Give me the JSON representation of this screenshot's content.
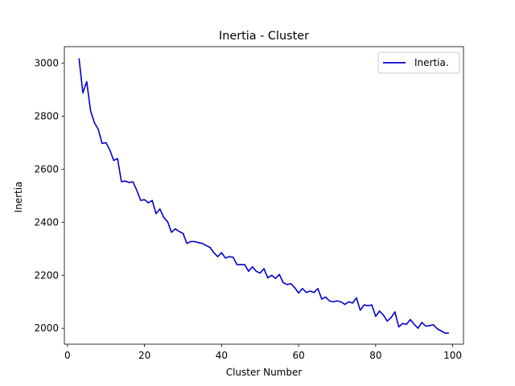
{
  "chart_data": {
    "type": "line",
    "title": "Inertia - Cluster",
    "xlabel": "Cluster Number",
    "ylabel": "Inertia",
    "xlim": [
      -0.8,
      102.8
    ],
    "ylim": [
      1940,
      3062
    ],
    "xticks": [
      0,
      20,
      40,
      60,
      80,
      100
    ],
    "yticks": [
      2000,
      2200,
      2400,
      2600,
      2800,
      3000
    ],
    "grid": false,
    "legend": {
      "position": "top-right"
    },
    "series": [
      {
        "name": "Inertia.",
        "color": "#0000cc",
        "x": [
          3,
          4,
          5,
          6,
          7,
          8,
          9,
          10,
          11,
          12,
          13,
          14,
          15,
          16,
          17,
          18,
          19,
          20,
          21,
          22,
          23,
          24,
          25,
          26,
          27,
          28,
          29,
          30,
          31,
          32,
          33,
          34,
          35,
          36,
          37,
          38,
          39,
          40,
          41,
          42,
          43,
          44,
          45,
          46,
          47,
          48,
          49,
          50,
          51,
          52,
          53,
          54,
          55,
          56,
          57,
          58,
          59,
          60,
          61,
          62,
          63,
          64,
          65,
          66,
          67,
          68,
          69,
          70,
          71,
          72,
          73,
          74,
          75,
          76,
          77,
          78,
          79,
          80,
          81,
          82,
          83,
          84,
          85,
          86,
          87,
          88,
          89,
          90,
          91,
          92,
          93,
          94,
          95,
          96,
          97,
          98,
          99
        ],
        "values": [
          3018,
          2888,
          2930,
          2820,
          2775,
          2750,
          2697,
          2700,
          2672,
          2633,
          2640,
          2553,
          2555,
          2550,
          2552,
          2520,
          2482,
          2485,
          2473,
          2482,
          2432,
          2450,
          2418,
          2402,
          2362,
          2375,
          2365,
          2358,
          2320,
          2327,
          2327,
          2323,
          2320,
          2312,
          2305,
          2285,
          2270,
          2285,
          2265,
          2270,
          2268,
          2240,
          2240,
          2240,
          2215,
          2232,
          2215,
          2208,
          2225,
          2190,
          2200,
          2188,
          2203,
          2172,
          2165,
          2168,
          2153,
          2133,
          2150,
          2135,
          2140,
          2135,
          2150,
          2110,
          2118,
          2103,
          2100,
          2103,
          2100,
          2090,
          2100,
          2095,
          2115,
          2068,
          2088,
          2085,
          2088,
          2045,
          2065,
          2050,
          2027,
          2040,
          2062,
          2005,
          2018,
          2015,
          2033,
          2015,
          2000,
          2022,
          2008,
          2010,
          2013,
          1998,
          1990,
          1982,
          1982
        ]
      }
    ]
  }
}
